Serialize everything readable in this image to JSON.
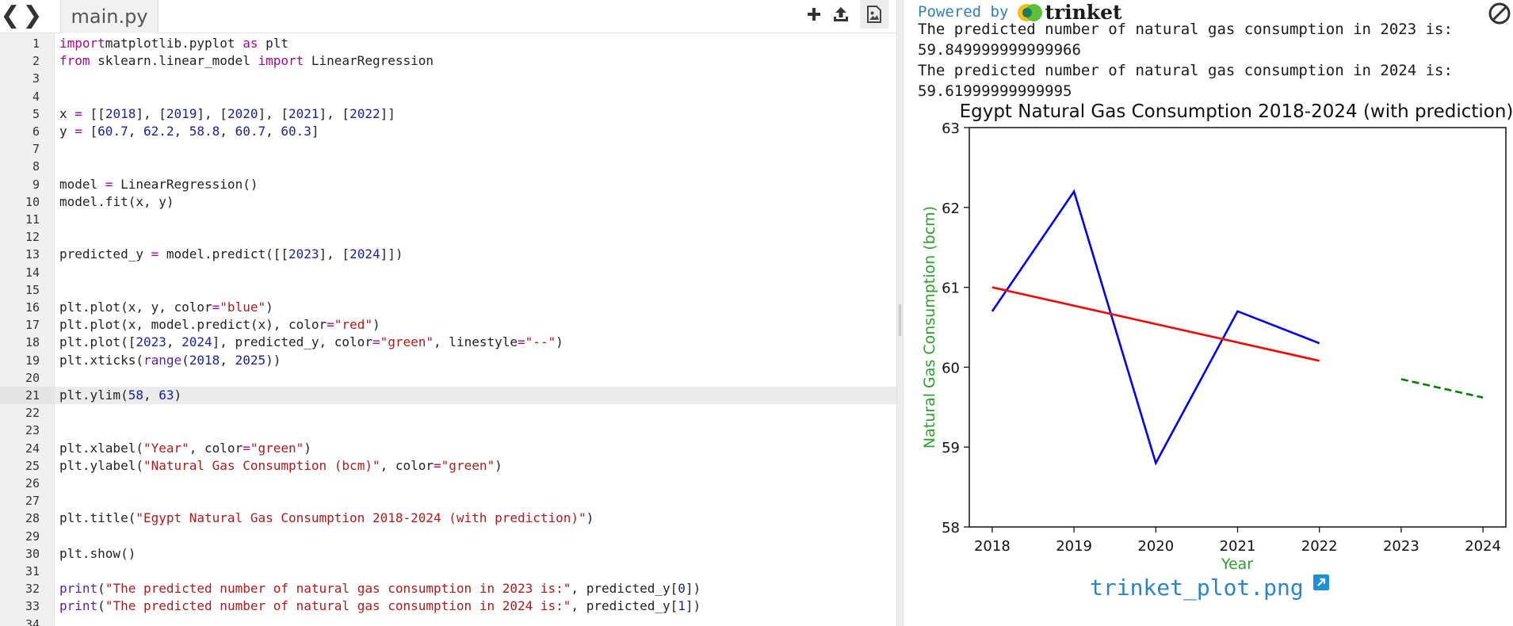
{
  "editor": {
    "filename": "main.py",
    "nav": {
      "back_glyph": "❮",
      "forward_glyph": "❯"
    },
    "toolbar_icons": [
      "plus-icon",
      "upload-icon",
      "image-icon"
    ],
    "active_line": 21,
    "line_count": 34
  },
  "output": {
    "powered_by": "Powered by",
    "brand": "trinket",
    "console_lines": [
      "The predicted number of natural gas consumption in 2023 is:",
      "59.849999999999966",
      "The predicted number of natural gas consumption in 2024 is:",
      "59.61999999999995"
    ],
    "plot_file": "trinket_plot.png"
  },
  "chart_data": {
    "type": "line",
    "title": "Egypt Natural Gas Consumption 2018-2024 (with prediction)",
    "xlabel": "Year",
    "ylabel": "Natural Gas Consumption (bcm)",
    "label_color": "#2ca02c",
    "xlim": [
      2017.72,
      2024.28
    ],
    "ylim": [
      58,
      63
    ],
    "xticks": [
      2018,
      2019,
      2020,
      2021,
      2022,
      2023,
      2024
    ],
    "yticks": [
      58,
      59,
      60,
      61,
      62,
      63
    ],
    "grid": false,
    "series": [
      {
        "color": "#0000ff",
        "style": "solid",
        "x": [
          2018,
          2019,
          2020,
          2021,
          2022
        ],
        "y": [
          60.7,
          62.2,
          58.8,
          60.7,
          60.3
        ]
      },
      {
        "color": "#ff0000",
        "style": "solid",
        "x": [
          2018,
          2022
        ],
        "y": [
          61.0,
          60.08
        ]
      },
      {
        "color": "#008000",
        "style": "dashed",
        "x": [
          2023,
          2024
        ],
        "y": [
          59.85,
          59.62
        ]
      }
    ]
  }
}
